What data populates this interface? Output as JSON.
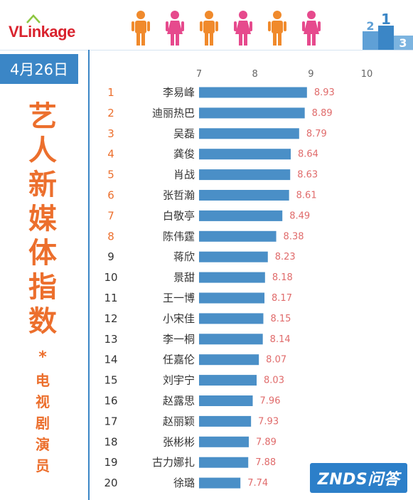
{
  "header": {
    "logo_text": "VLinkage"
  },
  "date_label": "4月26日",
  "side_title_chars": [
    "艺",
    "人",
    "新",
    "媒",
    "体",
    "指",
    "数"
  ],
  "side_star": "*",
  "side_sub_chars": [
    "电",
    "视",
    "剧",
    "演",
    "员"
  ],
  "watermark": "ZNDS问答",
  "colors": {
    "accent_blue": "#3b86c6",
    "bar_blue": "#4a8fc7",
    "value_pink": "#e06b6b",
    "rank_orange": "#ec6f2d",
    "person_orange": "#f08a2c",
    "person_pink": "#e64a8d"
  },
  "chart_data": {
    "type": "bar",
    "orientation": "horizontal",
    "xlim": [
      7,
      10
    ],
    "xticks": [
      7,
      8,
      9,
      10
    ],
    "ranks": [
      "1",
      "2",
      "3",
      "4",
      "5",
      "6",
      "7",
      "8",
      "9",
      "10",
      "11",
      "12",
      "13",
      "14",
      "15",
      "16",
      "17",
      "18",
      "19",
      "20"
    ],
    "categories": [
      "李易峰",
      "迪丽热巴",
      "吴磊",
      "龚俊",
      "肖战",
      "张哲瀚",
      "白敬亭",
      "陈伟霆",
      "蒋欣",
      "景甜",
      "王一博",
      "小宋佳",
      "李一桐",
      "任嘉伦",
      "刘宇宁",
      "赵露思",
      "赵丽颖",
      "张彬彬",
      "古力娜扎",
      "徐璐"
    ],
    "values": [
      8.93,
      8.89,
      8.79,
      8.64,
      8.63,
      8.61,
      8.49,
      8.38,
      8.23,
      8.18,
      8.17,
      8.15,
      8.14,
      8.07,
      8.03,
      7.96,
      7.93,
      7.89,
      7.88,
      7.74
    ],
    "value_labels": [
      "8.93",
      "8.89",
      "8.79",
      "8.64",
      "8.63",
      "8.61",
      "8.49",
      "8.38",
      "8.23",
      "8.18",
      "8.17",
      "8.15",
      "8.14",
      "8.07",
      "8.03",
      "7.96",
      "7.93",
      "7.89",
      "7.88",
      "7.74"
    ],
    "grid": false,
    "legend": "none"
  }
}
